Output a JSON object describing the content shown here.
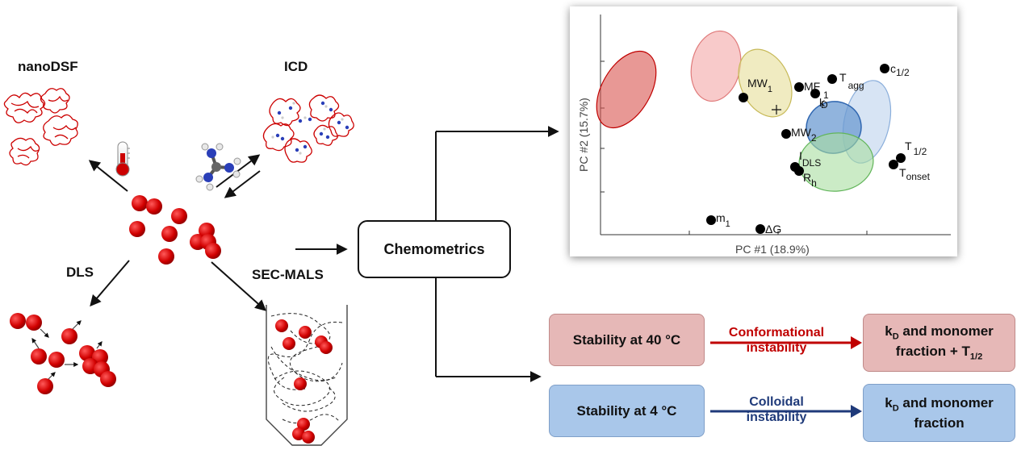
{
  "methods": {
    "nanodsf": "nanoDSF",
    "icd": "ICD",
    "dls": "DLS",
    "secmals": "SEC-MALS"
  },
  "center_box": "Chemometrics",
  "pca": {
    "xlabel": "PC #1 (18.9%)",
    "ylabel": "PC #2 (15.7%)",
    "points": [
      {
        "label": "MW",
        "sub": "1"
      },
      {
        "label": "MF",
        "sub": ""
      },
      {
        "label": "T",
        "sub": "agg"
      },
      {
        "label": "c",
        "sub": "1/2"
      },
      {
        "label": "k",
        "sub": "1"
      },
      {
        "label": "k",
        "sub": "D"
      },
      {
        "label": "MW",
        "sub": "2"
      },
      {
        "label": "I",
        "sub": "DLS"
      },
      {
        "label": "R",
        "sub": "h"
      },
      {
        "label": "T",
        "sub": "1/2"
      },
      {
        "label": "T",
        "sub": "onset"
      },
      {
        "label": "m",
        "sub": "1"
      },
      {
        "label": "ΔG",
        "sub": ""
      }
    ]
  },
  "stability": {
    "row40": {
      "left": "Stability at 40 °C",
      "middle": [
        "Conformational",
        "instability"
      ],
      "right_l1_pre": "k",
      "right_l1_sub": "D",
      "right_l1_post": " and monomer",
      "right_l2_pre": "fraction + T",
      "right_l2_sub": "1/2"
    },
    "row4": {
      "left": "Stability at 4 °C",
      "middle": [
        "Colloidal",
        "instability"
      ],
      "right_l1_pre": "k",
      "right_l1_sub": "D",
      "right_l1_post": " and monomer",
      "right_l2": "fraction"
    }
  },
  "colors": {
    "particle": "#cc0000",
    "red_box": "#e6b8b7",
    "blue_box": "#a9c7ea",
    "conformational_text": "#c00000",
    "colloidal_text": "#1f3a7a"
  }
}
